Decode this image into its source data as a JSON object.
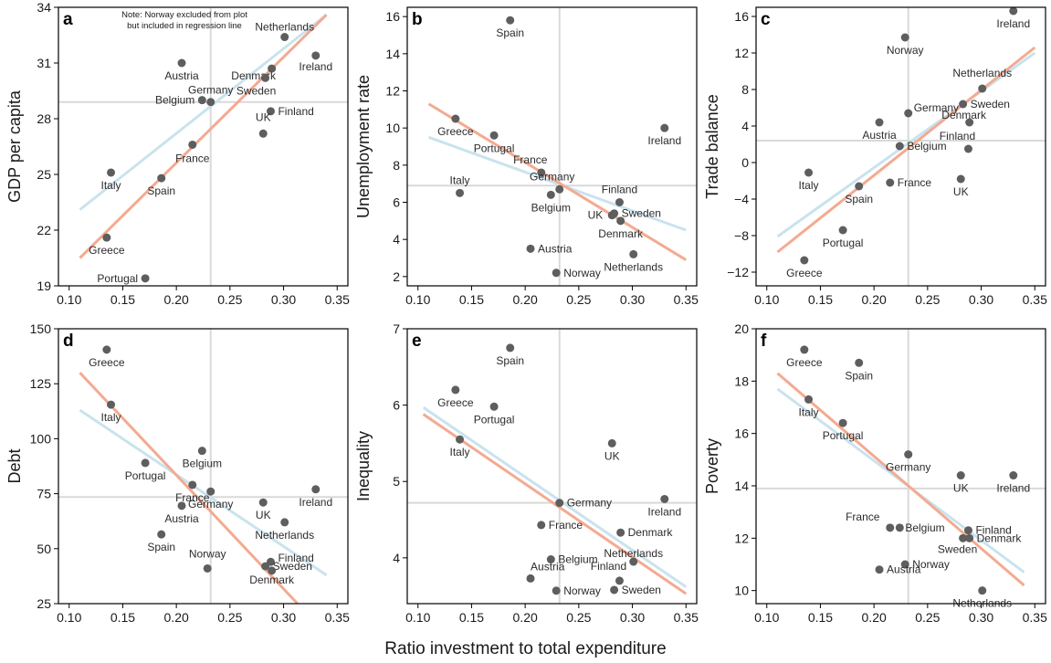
{
  "shared_xlabel": "Ratio investment to total expenditure",
  "colors": {
    "point": "#5e5e5e",
    "line_orange": "#f4aa90",
    "line_blue": "#c9e3ee",
    "reference": "#d9d9d9",
    "frame": "#000000"
  },
  "chart_data": [
    {
      "panel": "a",
      "type": "scatter",
      "ylabel": "GDP per capita",
      "xlabel": "",
      "xlim": [
        0.09,
        0.36
      ],
      "ylim": [
        19,
        34
      ],
      "xticks": [
        "0.10",
        "0.15",
        "0.20",
        "0.25",
        "0.30",
        "0.35"
      ],
      "yticks": [
        "19",
        "22",
        "25",
        "28",
        "31",
        "34"
      ],
      "ref_x": 0.232,
      "ref_y": 28.9,
      "note": [
        "Note: Norway excluded from plot",
        "but included in regression line"
      ],
      "points": [
        {
          "label": "Austria",
          "x": 0.205,
          "y": 31.0
        },
        {
          "label": "Netherlands",
          "x": 0.301,
          "y": 32.4
        },
        {
          "label": "Ireland",
          "x": 0.33,
          "y": 31.4
        },
        {
          "label": "Denmark",
          "x": 0.289,
          "y": 30.7
        },
        {
          "label": "Sweden",
          "x": 0.283,
          "y": 30.2
        },
        {
          "label": "Germany",
          "x": 0.232,
          "y": 28.9
        },
        {
          "label": "Belgium",
          "x": 0.224,
          "y": 29.0
        },
        {
          "label": "Finland",
          "x": 0.288,
          "y": 28.4
        },
        {
          "label": "UK",
          "x": 0.281,
          "y": 27.2
        },
        {
          "label": "France",
          "x": 0.215,
          "y": 26.6
        },
        {
          "label": "Italy",
          "x": 0.139,
          "y": 25.1
        },
        {
          "label": "Spain",
          "x": 0.186,
          "y": 24.8
        },
        {
          "label": "Greece",
          "x": 0.135,
          "y": 21.6
        },
        {
          "label": "Portugal",
          "x": 0.171,
          "y": 19.4
        }
      ],
      "fit_lines": [
        {
          "color": "line_blue",
          "x": [
            0.11,
            0.34
          ],
          "y": [
            23.1,
            33.6
          ]
        },
        {
          "color": "line_orange",
          "x": [
            0.11,
            0.34
          ],
          "y": [
            20.5,
            33.6
          ]
        }
      ]
    },
    {
      "panel": "b",
      "type": "scatter",
      "ylabel": "Unemployment rate",
      "xlabel": "",
      "xlim": [
        0.09,
        0.36
      ],
      "ylim": [
        1.5,
        16.5
      ],
      "xticks": [
        "0.10",
        "0.15",
        "0.20",
        "0.25",
        "0.30",
        "0.35"
      ],
      "yticks": [
        "2",
        "4",
        "6",
        "8",
        "10",
        "12",
        "14",
        "16"
      ],
      "ref_x": 0.232,
      "ref_y": 6.9,
      "points": [
        {
          "label": "Spain",
          "x": 0.186,
          "y": 15.8
        },
        {
          "label": "Greece",
          "x": 0.135,
          "y": 10.5
        },
        {
          "label": "Portugal",
          "x": 0.171,
          "y": 9.6
        },
        {
          "label": "Ireland",
          "x": 0.33,
          "y": 10.0
        },
        {
          "label": "France",
          "x": 0.215,
          "y": 7.6
        },
        {
          "label": "Germany",
          "x": 0.232,
          "y": 6.7
        },
        {
          "label": "Italy",
          "x": 0.139,
          "y": 6.5
        },
        {
          "label": "Belgium",
          "x": 0.224,
          "y": 6.4
        },
        {
          "label": "Finland",
          "x": 0.288,
          "y": 6.0
        },
        {
          "label": "UK",
          "x": 0.281,
          "y": 5.3
        },
        {
          "label": "Sweden",
          "x": 0.283,
          "y": 5.4
        },
        {
          "label": "Denmark",
          "x": 0.289,
          "y": 5.0
        },
        {
          "label": "Austria",
          "x": 0.205,
          "y": 3.5
        },
        {
          "label": "Netherlands",
          "x": 0.301,
          "y": 3.2
        },
        {
          "label": "Norway",
          "x": 0.229,
          "y": 2.2
        }
      ],
      "fit_lines": [
        {
          "color": "line_blue",
          "x": [
            0.11,
            0.35
          ],
          "y": [
            9.5,
            4.5
          ]
        },
        {
          "color": "line_orange",
          "x": [
            0.11,
            0.35
          ],
          "y": [
            11.3,
            2.9
          ]
        }
      ]
    },
    {
      "panel": "c",
      "type": "scatter",
      "ylabel": "Trade balance",
      "xlabel": "",
      "xlim": [
        0.09,
        0.36
      ],
      "ylim": [
        -13.5,
        17
      ],
      "xticks": [
        "0.10",
        "0.15",
        "0.20",
        "0.25",
        "0.30",
        "0.35"
      ],
      "yticks": [
        "−12",
        "−8",
        "−4",
        "0",
        "4",
        "8",
        "12",
        "16"
      ],
      "ytick_values": [
        -12,
        -8,
        -4,
        0,
        4,
        8,
        12,
        16
      ],
      "ref_x": 0.232,
      "ref_y": 2.4,
      "points": [
        {
          "label": "Ireland",
          "x": 0.33,
          "y": 16.6
        },
        {
          "label": "Norway",
          "x": 0.229,
          "y": 13.7
        },
        {
          "label": "Netherlands",
          "x": 0.301,
          "y": 8.1
        },
        {
          "label": "Sweden",
          "x": 0.283,
          "y": 6.4
        },
        {
          "label": "Germany",
          "x": 0.232,
          "y": 5.4
        },
        {
          "label": "Denmark",
          "x": 0.289,
          "y": 4.4
        },
        {
          "label": "Austria",
          "x": 0.205,
          "y": 4.4
        },
        {
          "label": "Belgium",
          "x": 0.224,
          "y": 1.8
        },
        {
          "label": "Finland",
          "x": 0.288,
          "y": 1.5
        },
        {
          "label": "Italy",
          "x": 0.139,
          "y": -1.1
        },
        {
          "label": "UK",
          "x": 0.281,
          "y": -1.8
        },
        {
          "label": "France",
          "x": 0.215,
          "y": -2.2
        },
        {
          "label": "Spain",
          "x": 0.186,
          "y": -2.6
        },
        {
          "label": "Portugal",
          "x": 0.171,
          "y": -7.4
        },
        {
          "label": "Greece",
          "x": 0.135,
          "y": -10.7
        }
      ],
      "fit_lines": [
        {
          "color": "line_blue",
          "x": [
            0.11,
            0.35
          ],
          "y": [
            -8.1,
            12.0
          ]
        },
        {
          "color": "line_orange",
          "x": [
            0.11,
            0.35
          ],
          "y": [
            -9.8,
            12.6
          ]
        }
      ]
    },
    {
      "panel": "d",
      "type": "scatter",
      "ylabel": "Debt",
      "xlabel": "",
      "xlim": [
        0.09,
        0.36
      ],
      "ylim": [
        25,
        150
      ],
      "xticks": [
        "0.10",
        "0.15",
        "0.20",
        "0.25",
        "0.30",
        "0.35"
      ],
      "yticks": [
        "25",
        "50",
        "75",
        "100",
        "125",
        "150"
      ],
      "ref_x": 0.232,
      "ref_y": 73.5,
      "points": [
        {
          "label": "Greece",
          "x": 0.135,
          "y": 140.5
        },
        {
          "label": "Italy",
          "x": 0.139,
          "y": 115.5
        },
        {
          "label": "Belgium",
          "x": 0.224,
          "y": 94.5
        },
        {
          "label": "Portugal",
          "x": 0.171,
          "y": 89.0
        },
        {
          "label": "France",
          "x": 0.215,
          "y": 79.0
        },
        {
          "label": "Germany",
          "x": 0.232,
          "y": 76.0
        },
        {
          "label": "Ireland",
          "x": 0.33,
          "y": 77.0
        },
        {
          "label": "UK",
          "x": 0.281,
          "y": 71.0
        },
        {
          "label": "Austria",
          "x": 0.205,
          "y": 69.5
        },
        {
          "label": "Netherlands",
          "x": 0.301,
          "y": 62.0
        },
        {
          "label": "Spain",
          "x": 0.186,
          "y": 56.5
        },
        {
          "label": "Finland",
          "x": 0.288,
          "y": 44.0
        },
        {
          "label": "Sweden",
          "x": 0.283,
          "y": 42.0
        },
        {
          "label": "Norway",
          "x": 0.229,
          "y": 41.0
        },
        {
          "label": "Denmark",
          "x": 0.289,
          "y": 40.0
        }
      ],
      "fit_lines": [
        {
          "color": "line_blue",
          "x": [
            0.11,
            0.34
          ],
          "y": [
            113,
            38
          ]
        },
        {
          "color": "line_orange",
          "x": [
            0.11,
            0.313
          ],
          "y": [
            130,
            25
          ]
        }
      ]
    },
    {
      "panel": "e",
      "type": "scatter",
      "ylabel": "Inequality",
      "xlabel": "",
      "xlim": [
        0.09,
        0.36
      ],
      "ylim": [
        3.4,
        7.0
      ],
      "xticks": [
        "0.10",
        "0.15",
        "0.20",
        "0.25",
        "0.30",
        "0.35"
      ],
      "yticks": [
        "4",
        "5",
        "6",
        "7"
      ],
      "ref_x": 0.232,
      "ref_y": 4.72,
      "points": [
        {
          "label": "Spain",
          "x": 0.186,
          "y": 6.75
        },
        {
          "label": "Greece",
          "x": 0.135,
          "y": 6.2
        },
        {
          "label": "Portugal",
          "x": 0.171,
          "y": 5.98
        },
        {
          "label": "Italy",
          "x": 0.139,
          "y": 5.55
        },
        {
          "label": "UK",
          "x": 0.281,
          "y": 5.5
        },
        {
          "label": "Ireland",
          "x": 0.33,
          "y": 4.77
        },
        {
          "label": "Germany",
          "x": 0.232,
          "y": 4.72
        },
        {
          "label": "France",
          "x": 0.215,
          "y": 4.43
        },
        {
          "label": "Denmark",
          "x": 0.289,
          "y": 4.33
        },
        {
          "label": "Belgium",
          "x": 0.224,
          "y": 3.98
        },
        {
          "label": "Netherlands",
          "x": 0.301,
          "y": 3.95
        },
        {
          "label": "Austria",
          "x": 0.205,
          "y": 3.73
        },
        {
          "label": "Finland",
          "x": 0.288,
          "y": 3.7
        },
        {
          "label": "Norway",
          "x": 0.229,
          "y": 3.57
        },
        {
          "label": "Sweden",
          "x": 0.283,
          "y": 3.58
        }
      ],
      "fit_lines": [
        {
          "color": "line_blue",
          "x": [
            0.105,
            0.35
          ],
          "y": [
            5.97,
            3.62
          ]
        },
        {
          "color": "line_orange",
          "x": [
            0.105,
            0.35
          ],
          "y": [
            5.88,
            3.53
          ]
        }
      ]
    },
    {
      "panel": "f",
      "type": "scatter",
      "ylabel": "Poverty",
      "xlabel": "",
      "xlim": [
        0.09,
        0.36
      ],
      "ylim": [
        9.5,
        20
      ],
      "xticks": [
        "0.10",
        "0.15",
        "0.20",
        "0.25",
        "0.30",
        "0.35"
      ],
      "yticks": [
        "10",
        "12",
        "14",
        "16",
        "18",
        "20"
      ],
      "ref_x": 0.232,
      "ref_y": 13.9,
      "points": [
        {
          "label": "Greece",
          "x": 0.135,
          "y": 19.2
        },
        {
          "label": "Spain",
          "x": 0.186,
          "y": 18.7
        },
        {
          "label": "Italy",
          "x": 0.139,
          "y": 17.3
        },
        {
          "label": "Portugal",
          "x": 0.171,
          "y": 16.4
        },
        {
          "label": "Germany",
          "x": 0.232,
          "y": 15.2
        },
        {
          "label": "UK",
          "x": 0.281,
          "y": 14.4
        },
        {
          "label": "Ireland",
          "x": 0.33,
          "y": 14.4
        },
        {
          "label": "France",
          "x": 0.215,
          "y": 12.4
        },
        {
          "label": "Belgium",
          "x": 0.224,
          "y": 12.4
        },
        {
          "label": "Finland",
          "x": 0.288,
          "y": 12.3
        },
        {
          "label": "Sweden",
          "x": 0.283,
          "y": 12.0
        },
        {
          "label": "Denmark",
          "x": 0.289,
          "y": 12.0
        },
        {
          "label": "Norway",
          "x": 0.229,
          "y": 11.0
        },
        {
          "label": "Austria",
          "x": 0.205,
          "y": 10.8
        },
        {
          "label": "Netherlands",
          "x": 0.301,
          "y": 10.0
        }
      ],
      "fit_lines": [
        {
          "color": "line_blue",
          "x": [
            0.11,
            0.34
          ],
          "y": [
            17.7,
            10.7
          ]
        },
        {
          "color": "line_orange",
          "x": [
            0.11,
            0.34
          ],
          "y": [
            18.3,
            10.2
          ]
        }
      ]
    }
  ]
}
